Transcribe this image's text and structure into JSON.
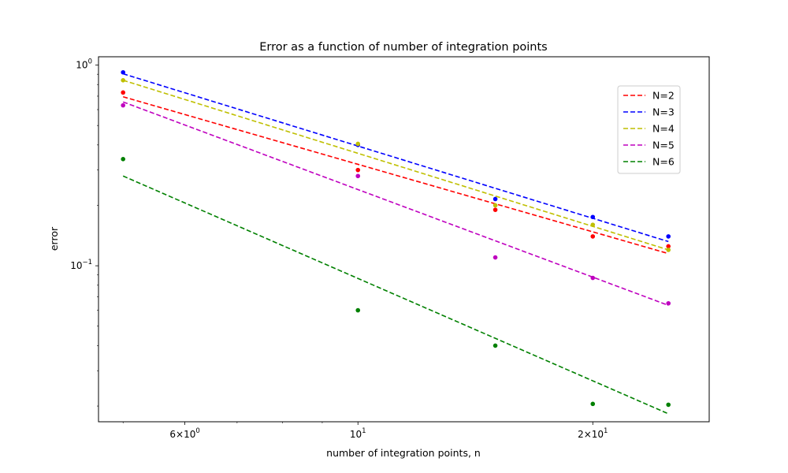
{
  "chart_data": {
    "type": "scatter",
    "title": "Error as a function of number of integration points",
    "xlabel": "number of integration points, n",
    "ylabel": "error",
    "xscale": "log",
    "yscale": "log",
    "xlim": [
      4.65,
      28.2
    ],
    "ylim": [
      0.0167,
      1.1
    ],
    "grid": false,
    "legend_position": "top-right",
    "x_ticks": [
      {
        "value": 6,
        "base": "6",
        "exp": "0"
      },
      {
        "value": 10,
        "base": "10",
        "exp": "1"
      },
      {
        "value": 20,
        "base": "2",
        "exp": "1"
      }
    ],
    "y_ticks": [
      {
        "value": 1.0,
        "base": "10",
        "exp": "0"
      },
      {
        "value": 0.1,
        "base": "10",
        "exp": "−1"
      }
    ],
    "x": [
      5,
      10,
      15,
      20,
      25
    ],
    "series": [
      {
        "name": "N=2",
        "color": "#ff0000",
        "points": [
          0.73,
          0.3,
          0.19,
          0.14,
          0.125
        ],
        "fit": [
          0.695,
          0.115
        ]
      },
      {
        "name": "N=3",
        "color": "#0000ff",
        "points": [
          0.92,
          0.4,
          0.215,
          0.175,
          0.14
        ],
        "fit": [
          0.905,
          0.132
        ]
      },
      {
        "name": "N=4",
        "color": "#bfbf00",
        "points": [
          0.84,
          0.405,
          0.2,
          0.16,
          0.12
        ],
        "fit": [
          0.84,
          0.12
        ]
      },
      {
        "name": "N=5",
        "color": "#bf00bf",
        "points": [
          0.63,
          0.28,
          0.11,
          0.087,
          0.065
        ],
        "fit": [
          0.655,
          0.0635
        ]
      },
      {
        "name": "N=6",
        "color": "#008000",
        "points": [
          0.34,
          0.06,
          0.04,
          0.0205,
          0.0203
        ],
        "fit": [
          0.28,
          0.0183
        ]
      }
    ]
  }
}
